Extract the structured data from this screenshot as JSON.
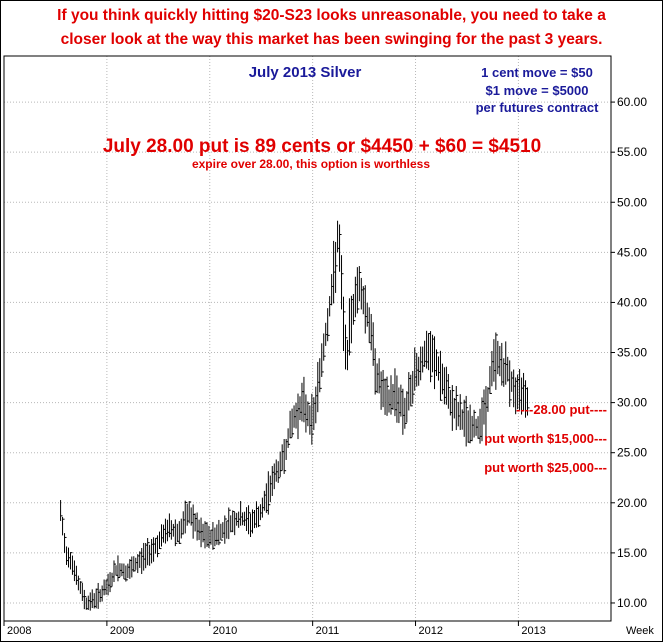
{
  "headline": {
    "line1": "If you think quickly hitting $20-S23 looks unreasonable, you need to take a",
    "line2": "closer look at the way this market has been swinging for the past 3 years."
  },
  "chart_data": {
    "type": "bar",
    "style": "ohlc-weekly",
    "title": "July 2013 Silver",
    "x_axis_caption": "Week",
    "x_tick_labels": [
      "2008",
      "2009",
      "2010",
      "2011",
      "2012",
      "2013"
    ],
    "y_tick_labels": [
      "10.00",
      "15.00",
      "20.00",
      "25.00",
      "30.00",
      "35.00",
      "40.00",
      "45.00",
      "50.00",
      "55.00",
      "60.00"
    ],
    "ylim": [
      8.2,
      64.6
    ],
    "xlim": [
      2008.0,
      2013.9
    ],
    "grid": true,
    "annotations": {
      "contract_line1": "1 cent move = $50",
      "contract_line2": "$1 move = $5000",
      "contract_line3": "per futures contract",
      "put_price": "July 28.00 put is 89 cents or $4450 + $60 = $4510",
      "put_expire": "expire over 28.00, this option is worthless",
      "strike_label": "----28.00 put----",
      "level_15000": "put worth $15,000---",
      "level_25000": "put worth $25,000---"
    },
    "series": [
      {
        "values_note": "approximate weekly closes",
        "x": [
          2008.55,
          2008.6,
          2008.65,
          2008.72,
          2008.8,
          2008.9,
          2009.0,
          2009.1,
          2009.2,
          2009.3,
          2009.4,
          2009.5,
          2009.6,
          2009.7,
          2009.8,
          2009.9,
          2010.0,
          2010.1,
          2010.2,
          2010.3,
          2010.4,
          2010.5,
          2010.6,
          2010.7,
          2010.8,
          2010.9,
          2011.0,
          2011.1,
          2011.2,
          2011.25,
          2011.3,
          2011.33,
          2011.38,
          2011.45,
          2011.5,
          2011.55,
          2011.62,
          2011.68,
          2011.72,
          2011.8,
          2011.9,
          2012.0,
          2012.05,
          2012.1,
          2012.2,
          2012.3,
          2012.4,
          2012.5,
          2012.55,
          2012.6,
          2012.7,
          2012.75,
          2012.8,
          2012.85,
          2012.9,
          2012.95,
          2013.0,
          2013.05,
          2013.1
        ],
        "values": [
          19,
          15,
          14.5,
          12,
          10,
          10.5,
          11.5,
          13.5,
          13,
          14,
          15,
          16,
          17.5,
          17,
          19,
          17,
          16.5,
          17,
          18,
          18.5,
          18,
          19,
          22,
          24,
          28,
          30,
          28,
          35,
          42,
          47,
          38,
          34,
          39,
          42,
          40,
          38,
          33,
          31,
          30,
          31,
          29,
          33,
          34,
          35,
          34,
          31,
          29,
          28,
          27.5,
          27.5,
          30,
          34,
          34.5,
          33.5,
          33,
          31.5,
          30.5,
          31.5,
          30
        ]
      }
    ]
  }
}
